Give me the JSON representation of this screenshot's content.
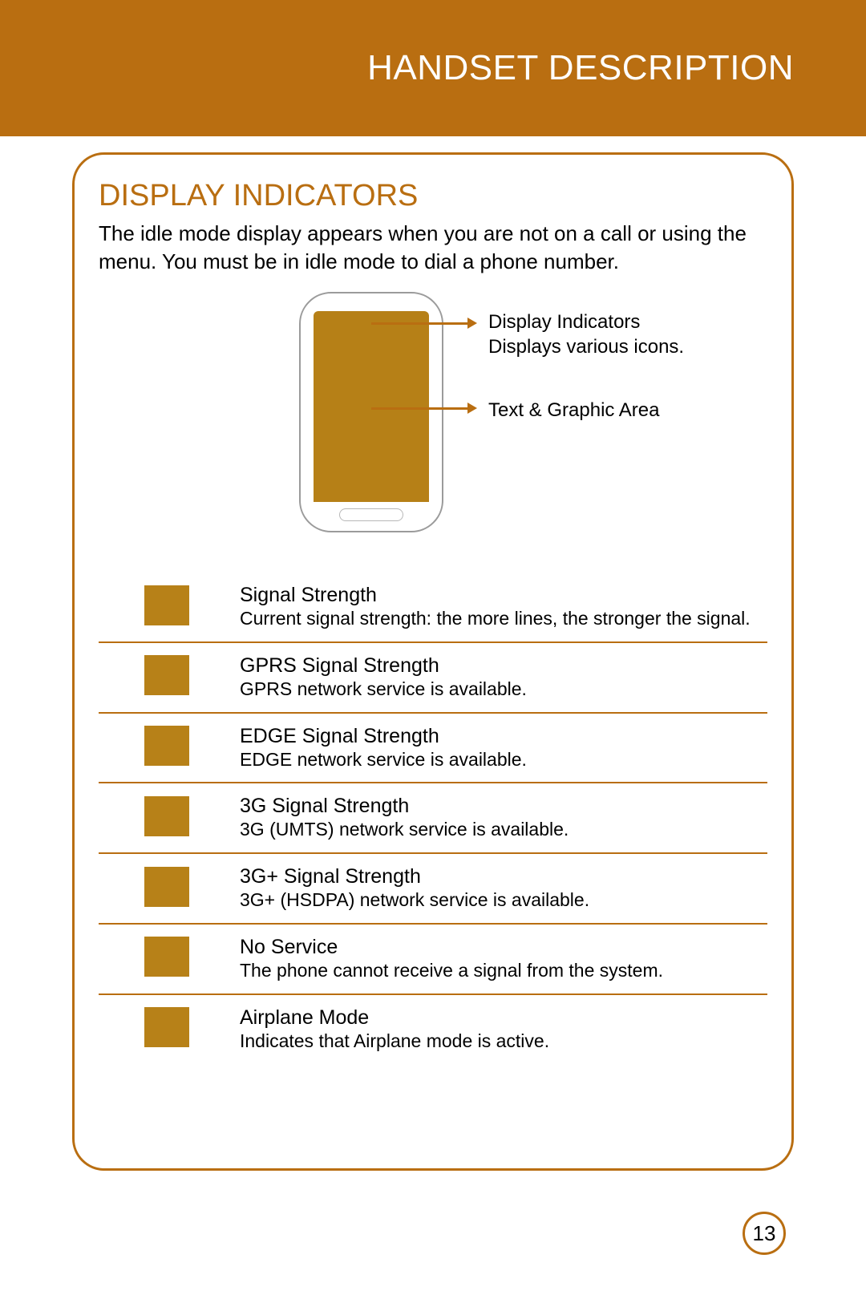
{
  "colors": {
    "brand": "#b96e11",
    "header_bg": "#b96e11",
    "box_border": "#b96e11",
    "screen_fill": "#b68017",
    "swatch": "#b78118",
    "row_border": "#b96e11",
    "arrow": "#b96e11"
  },
  "header": {
    "title": "HANDSET DESCRIPTION"
  },
  "section": {
    "title": "DISPLAY INDICATORS",
    "intro": "The idle mode display appears when you are not on a call or using the menu. You must be in idle mode to dial a phone number."
  },
  "callouts": [
    {
      "line1": "Display Indicators",
      "line2": "Displays various icons."
    },
    {
      "line1": "Text & Graphic Area",
      "line2": ""
    }
  ],
  "indicators": [
    {
      "title": "Signal Strength",
      "desc": "Current signal strength: the more lines, the stronger the signal."
    },
    {
      "title": "GPRS Signal Strength",
      "desc": "GPRS network service is available."
    },
    {
      "title": "EDGE Signal Strength",
      "desc": "EDGE network service is available."
    },
    {
      "title": "3G Signal Strength",
      "desc": "3G (UMTS) network service is available."
    },
    {
      "title": "3G+ Signal Strength",
      "desc": "3G+ (HSDPA) network service is available."
    },
    {
      "title": "No Service",
      "desc": "The phone cannot receive a signal from the system."
    },
    {
      "title": "Airplane Mode",
      "desc": "Indicates that Airplane mode is active."
    }
  ],
  "page_number": "13"
}
